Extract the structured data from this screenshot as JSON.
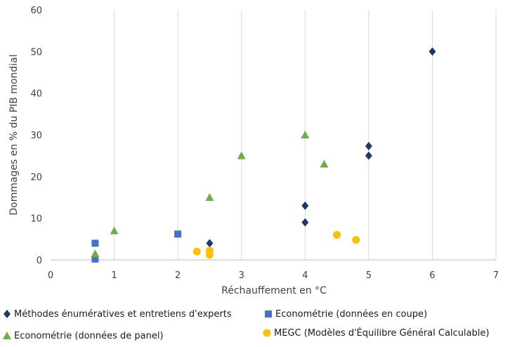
{
  "chart_data": {
    "type": "scatter",
    "title": "",
    "xlabel": "Réchauffement en °C",
    "ylabel": "Dommages en % du PIB mondial",
    "xlim": [
      0,
      7
    ],
    "ylim": [
      0,
      60
    ],
    "x_ticks": [
      "0",
      "1",
      "2",
      "3",
      "4",
      "5",
      "6",
      "7"
    ],
    "y_ticks": [
      "0",
      "10",
      "20",
      "30",
      "40",
      "50",
      "60"
    ],
    "grid": "vertical",
    "legend_position": "bottom",
    "series": [
      {
        "name": "Méthodes énumératives et entretiens d'experts",
        "marker": "diamond",
        "color": "#203864",
        "points": [
          [
            2.5,
            4
          ],
          [
            4,
            9
          ],
          [
            4,
            13
          ],
          [
            5,
            25
          ],
          [
            5,
            27.3
          ],
          [
            6,
            50
          ]
        ]
      },
      {
        "name": "Econométrie (données en coupe)",
        "marker": "square",
        "color": "#4472c4",
        "points": [
          [
            0.7,
            0.2
          ],
          [
            0.7,
            4
          ],
          [
            2,
            6.2
          ]
        ]
      },
      {
        "name": "Econométrie (données de panel)",
        "marker": "triangle",
        "color": "#70ad47",
        "points": [
          [
            0.7,
            1.5
          ],
          [
            1,
            7
          ],
          [
            2.5,
            15
          ],
          [
            3,
            25
          ],
          [
            4,
            30
          ],
          [
            4.3,
            23
          ]
        ]
      },
      {
        "name": "MEGC (Modèles d'Équilibre Général Calculable)",
        "marker": "circle",
        "color": "#ffc000",
        "points": [
          [
            2.3,
            2
          ],
          [
            2.5,
            1.2
          ],
          [
            2.5,
            2.2
          ],
          [
            4.5,
            6
          ],
          [
            4.8,
            4.8
          ]
        ]
      }
    ]
  }
}
